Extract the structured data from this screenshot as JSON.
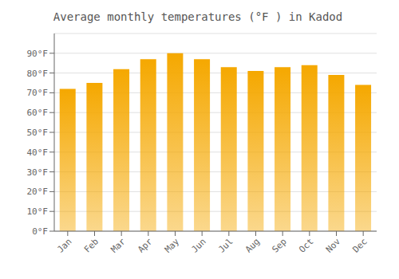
{
  "chart_data": {
    "type": "bar",
    "title": "Average monthly temperatures (°F ) in Kadod",
    "categories": [
      "Jan",
      "Feb",
      "Mar",
      "Apr",
      "May",
      "Jun",
      "Jul",
      "Aug",
      "Sep",
      "Oct",
      "Nov",
      "Dec"
    ],
    "values": [
      72,
      75,
      82,
      87,
      90,
      87,
      83,
      81,
      83,
      84,
      79,
      74
    ],
    "color": "#F5A800",
    "ylim": [
      0,
      100
    ],
    "yticks": [
      {
        "value": 0,
        "label": "0°F"
      },
      {
        "value": 10,
        "label": "10°F"
      },
      {
        "value": 20,
        "label": "20°F"
      },
      {
        "value": 30,
        "label": "30°F"
      },
      {
        "value": 40,
        "label": "40°F"
      },
      {
        "value": 50,
        "label": "50°F"
      },
      {
        "value": 60,
        "label": "60°F"
      },
      {
        "value": 70,
        "label": "70°F"
      },
      {
        "value": 80,
        "label": "80°F"
      },
      {
        "value": 90,
        "label": "90°F"
      }
    ],
    "grid": true
  }
}
